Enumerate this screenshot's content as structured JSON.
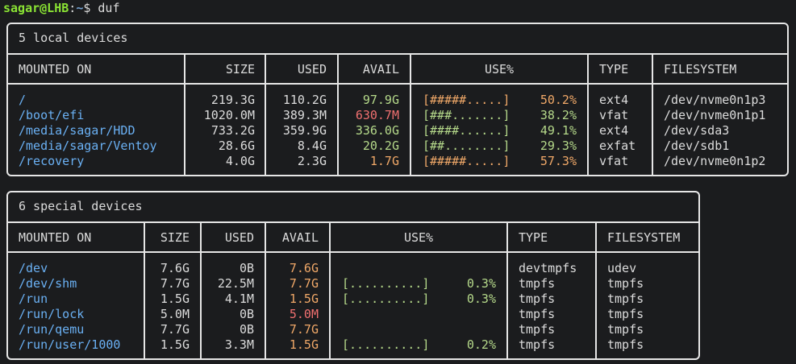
{
  "prompt": {
    "user_host": "sagar@LHB",
    "sep": ":",
    "path": "~",
    "symbol": "$ ",
    "command": "duf"
  },
  "colors": {
    "mount": "#6ab0f3",
    "good": "#b5d98a",
    "warn": "#f0a868",
    "bad": "#f07070",
    "border": "#e6e6e6",
    "background": "#1b1c1e"
  },
  "local": {
    "title": "5 local devices",
    "headers": {
      "mounted_on": "MOUNTED ON",
      "size": "SIZE",
      "used": "USED",
      "avail": "AVAIL",
      "use": "USE%",
      "type": "TYPE",
      "filesystem": "FILESYSTEM"
    },
    "rows": [
      {
        "mount": "/",
        "size": "219.3G",
        "used": "110.2G",
        "avail": "97.9G",
        "avail_level": "good",
        "bar": "[#####.....]",
        "pct": "50.2%",
        "pct_level": "warn",
        "type": "ext4",
        "fs": "/dev/nvme0n1p3"
      },
      {
        "mount": "/boot/efi",
        "size": "1020.0M",
        "used": "389.3M",
        "avail": "630.7M",
        "avail_level": "bad",
        "bar": "[###.......]",
        "pct": "38.2%",
        "pct_level": "good",
        "type": "vfat",
        "fs": "/dev/nvme0n1p1"
      },
      {
        "mount": "/media/sagar/HDD",
        "size": "733.2G",
        "used": "359.9G",
        "avail": "336.0G",
        "avail_level": "good",
        "bar": "[####......]",
        "pct": "49.1%",
        "pct_level": "good",
        "type": "ext4",
        "fs": "/dev/sda3"
      },
      {
        "mount": "/media/sagar/Ventoy",
        "size": "28.6G",
        "used": "8.4G",
        "avail": "20.2G",
        "avail_level": "good",
        "bar": "[##........]",
        "pct": "29.3%",
        "pct_level": "good",
        "type": "exfat",
        "fs": "/dev/sdb1"
      },
      {
        "mount": "/recovery",
        "size": "4.0G",
        "used": "2.3G",
        "avail": "1.7G",
        "avail_level": "warn",
        "bar": "[#####.....]",
        "pct": "57.3%",
        "pct_level": "warn",
        "type": "vfat",
        "fs": "/dev/nvme0n1p2"
      }
    ]
  },
  "special": {
    "title": "6 special devices",
    "headers": {
      "mounted_on": "MOUNTED ON",
      "size": "SIZE",
      "used": "USED",
      "avail": "AVAIL",
      "use": "USE%",
      "type": "TYPE",
      "filesystem": "FILESYSTEM"
    },
    "rows": [
      {
        "mount": "/dev",
        "size": "7.6G",
        "used": "0B",
        "avail": "7.6G",
        "avail_level": "warn",
        "bar": "",
        "pct": "",
        "pct_level": "good",
        "type": "devtmpfs",
        "fs": "udev"
      },
      {
        "mount": "/dev/shm",
        "size": "7.7G",
        "used": "22.5M",
        "avail": "7.7G",
        "avail_level": "warn",
        "bar": "[..........]",
        "pct": "0.3%",
        "pct_level": "good",
        "type": "tmpfs",
        "fs": "tmpfs"
      },
      {
        "mount": "/run",
        "size": "1.5G",
        "used": "4.1M",
        "avail": "1.5G",
        "avail_level": "warn",
        "bar": "[..........]",
        "pct": "0.3%",
        "pct_level": "good",
        "type": "tmpfs",
        "fs": "tmpfs"
      },
      {
        "mount": "/run/lock",
        "size": "5.0M",
        "used": "0B",
        "avail": "5.0M",
        "avail_level": "bad",
        "bar": "",
        "pct": "",
        "pct_level": "good",
        "type": "tmpfs",
        "fs": "tmpfs"
      },
      {
        "mount": "/run/qemu",
        "size": "7.7G",
        "used": "0B",
        "avail": "7.7G",
        "avail_level": "warn",
        "bar": "",
        "pct": "",
        "pct_level": "good",
        "type": "tmpfs",
        "fs": "tmpfs"
      },
      {
        "mount": "/run/user/1000",
        "size": "1.5G",
        "used": "3.3M",
        "avail": "1.5G",
        "avail_level": "warn",
        "bar": "[..........]",
        "pct": "0.2%",
        "pct_level": "good",
        "type": "tmpfs",
        "fs": "tmpfs"
      }
    ]
  }
}
